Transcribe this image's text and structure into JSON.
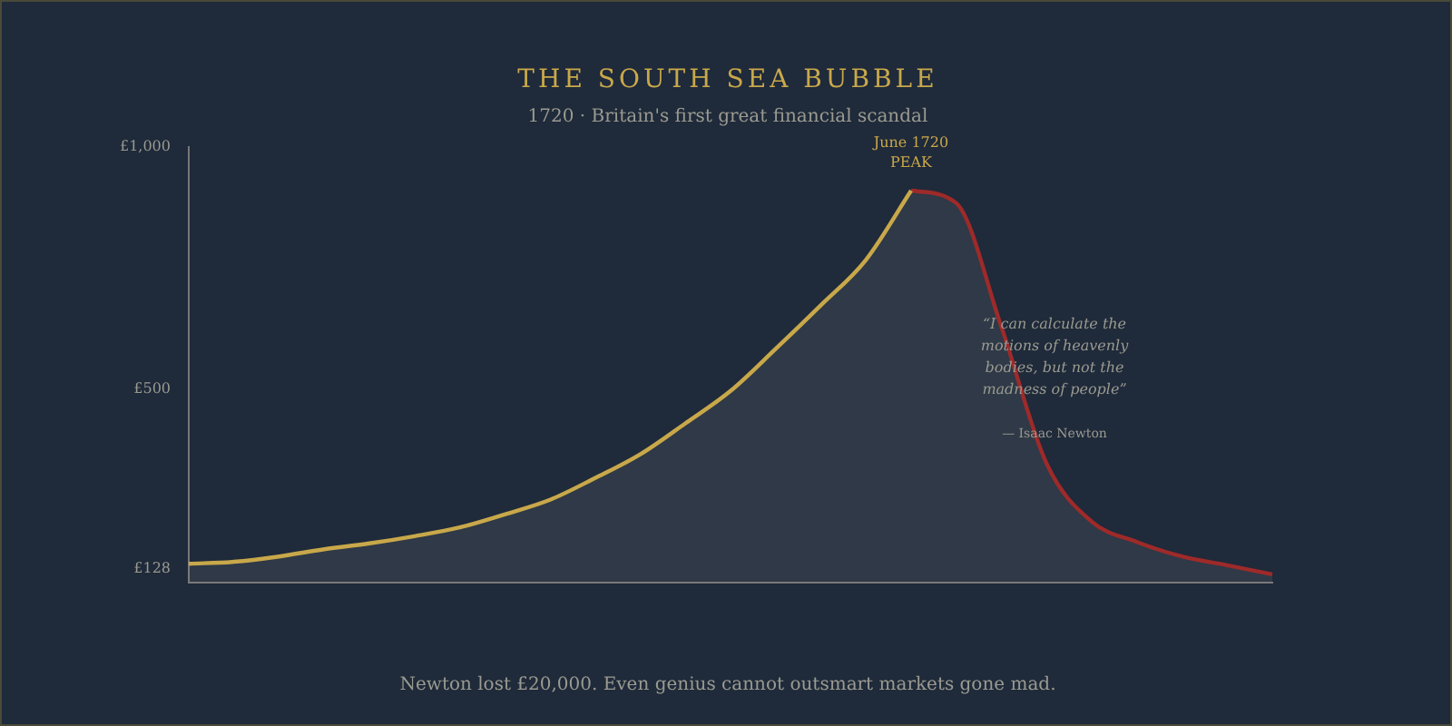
{
  "chart_data": {
    "type": "area",
    "title": "THE SOUTH SEA BUBBLE",
    "subtitle": "1720 · Britain's first great financial scandal",
    "categories": [
      null,
      null,
      null,
      null,
      null,
      null,
      null,
      null,
      null,
      null,
      null,
      null,
      null,
      null,
      null,
      null,
      null,
      null,
      null,
      null,
      null,
      null,
      null,
      null,
      null
    ],
    "series": [
      {
        "color": "#c8a84a",
        "values": [
          139,
          143,
          154,
          169,
          181,
          196,
          214,
          241,
          271,
          316,
          365,
          429,
          496,
          583,
          673,
          767,
          910,
          null,
          null,
          null,
          null,
          null,
          null,
          null,
          null
        ]
      },
      {
        "color": "#9e2a2a",
        "values": [
          null,
          null,
          null,
          null,
          null,
          null,
          null,
          null,
          null,
          null,
          null,
          null,
          null,
          null,
          null,
          null,
          910,
          884,
          628,
          346,
          226,
          184,
          154,
          136,
          117
        ]
      }
    ],
    "ylim": [
      100,
      1000
    ],
    "yticks": [
      {
        "value": 128,
        "label": "£128"
      },
      {
        "value": 500,
        "label": "£500"
      },
      {
        "value": 1000,
        "label": "£1,000"
      }
    ],
    "tick_labels": "y",
    "grid": false,
    "legend": false,
    "marker": "none",
    "annotations": [
      "June 1720",
      "PEAK",
      "“I can calculate the motions of heavenly bodies, but not the madness of people”",
      "— Isaac Newton",
      "Newton lost £20,000. Even genius cannot outsmart markets gone mad."
    ]
  }
}
